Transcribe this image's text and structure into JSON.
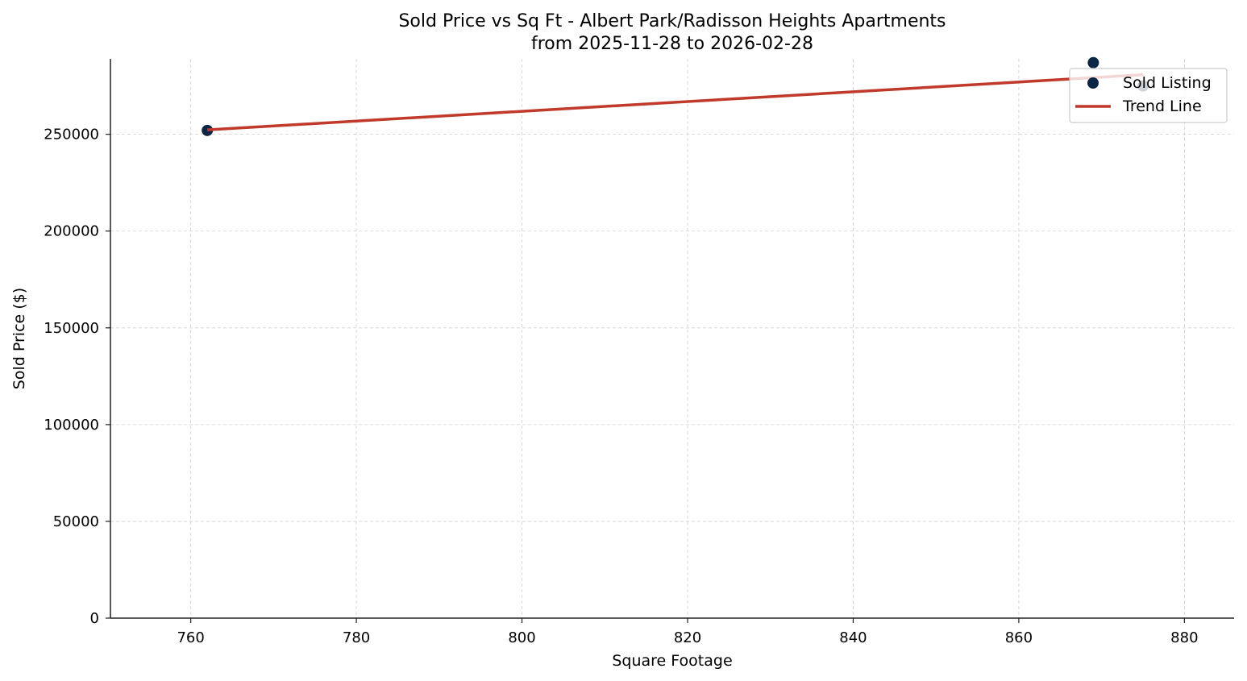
{
  "chart_data": {
    "type": "scatter",
    "title": "Sold Price vs Sq Ft - Albert Park/Radisson Heights Apartments",
    "subtitle": "from 2025-11-28 to 2026-02-28",
    "xlabel": "Square Footage",
    "ylabel": "Sold Price ($)",
    "xlim": [
      750.3,
      886.0
    ],
    "ylim": [
      0,
      289000
    ],
    "xticks": [
      760,
      780,
      800,
      820,
      840,
      860,
      880
    ],
    "yticks": [
      0,
      50000,
      100000,
      150000,
      200000,
      250000
    ],
    "grid": true,
    "legend_position": "upper right",
    "series": [
      {
        "name": "Sold Listing",
        "kind": "scatter",
        "color": "#0b2545",
        "points": [
          {
            "x": 762,
            "y": 252000
          },
          {
            "x": 869,
            "y": 287000
          },
          {
            "x": 875,
            "y": 275000
          }
        ]
      },
      {
        "name": "Trend Line",
        "kind": "line",
        "color": "#c0392b",
        "points": [
          {
            "x": 762,
            "y": 252300
          },
          {
            "x": 875,
            "y": 280800
          }
        ]
      }
    ]
  },
  "legend": {
    "items": [
      {
        "label": "Sold Listing",
        "marker": "circle",
        "color": "#0b2545"
      },
      {
        "label": "Trend Line",
        "marker": "line",
        "color": "#c0392b"
      }
    ]
  }
}
